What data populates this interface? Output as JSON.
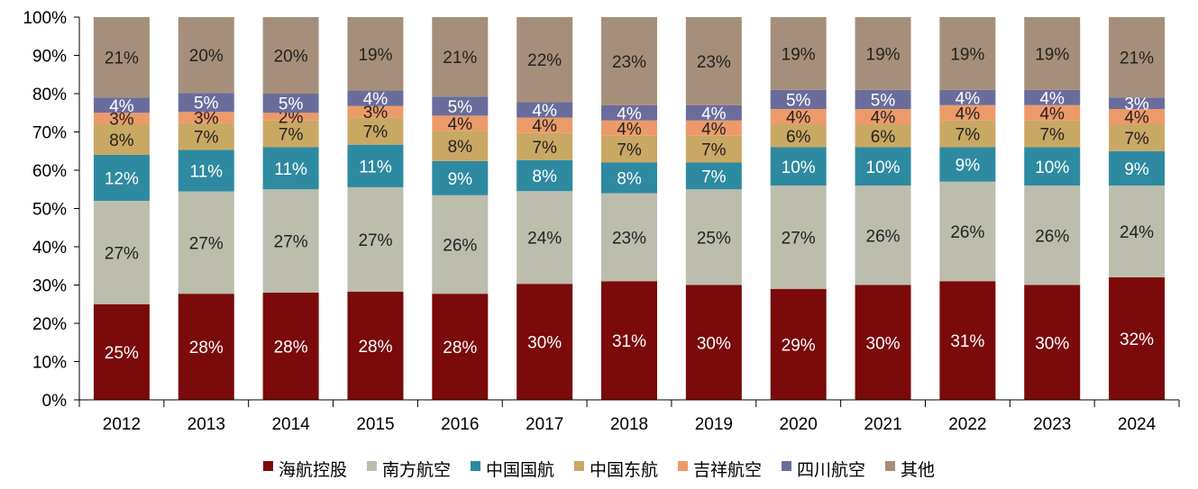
{
  "chart_data": {
    "type": "bar",
    "stacked": true,
    "percent": true,
    "categories": [
      "2012",
      "2013",
      "2014",
      "2015",
      "2016",
      "2017",
      "2018",
      "2019",
      "2020",
      "2021",
      "2022",
      "2023",
      "2024"
    ],
    "series": [
      {
        "name": "海航控股",
        "color": "#7b0a0a",
        "label_color": "#ffffff",
        "values": [
          25,
          28,
          28,
          28,
          28,
          30,
          31,
          30,
          29,
          30,
          31,
          30,
          32
        ]
      },
      {
        "name": "南方航空",
        "color": "#bcbdad",
        "label_color": "#222222",
        "values": [
          27,
          27,
          27,
          27,
          26,
          24,
          23,
          25,
          27,
          26,
          26,
          26,
          24
        ]
      },
      {
        "name": "中国国航",
        "color": "#2e8aa0",
        "label_color": "#ffffff",
        "values": [
          12,
          11,
          11,
          11,
          9,
          8,
          8,
          7,
          10,
          10,
          9,
          10,
          9
        ]
      },
      {
        "name": "中国东航",
        "color": "#c9a864",
        "label_color": "#222222",
        "values": [
          8,
          7,
          7,
          7,
          8,
          7,
          7,
          7,
          6,
          6,
          7,
          7,
          7
        ]
      },
      {
        "name": "吉祥航空",
        "color": "#ec9a6a",
        "label_color": "#222222",
        "values": [
          3,
          3,
          2,
          3,
          4,
          4,
          4,
          4,
          4,
          4,
          4,
          4,
          4
        ]
      },
      {
        "name": "四川航空",
        "color": "#6a6d9b",
        "label_color": "#ffffff",
        "values": [
          4,
          5,
          5,
          4,
          5,
          4,
          4,
          4,
          5,
          5,
          4,
          4,
          3
        ]
      },
      {
        "name": "其他",
        "color": "#a68f7a",
        "label_color": "#222222",
        "values": [
          21,
          20,
          20,
          19,
          21,
          22,
          23,
          23,
          19,
          19,
          19,
          19,
          21
        ]
      }
    ],
    "y_ticks": [
      "0%",
      "10%",
      "20%",
      "30%",
      "40%",
      "50%",
      "60%",
      "70%",
      "80%",
      "90%",
      "100%"
    ],
    "ylim": [
      0,
      100
    ],
    "legend_position": "bottom",
    "grid": false
  }
}
